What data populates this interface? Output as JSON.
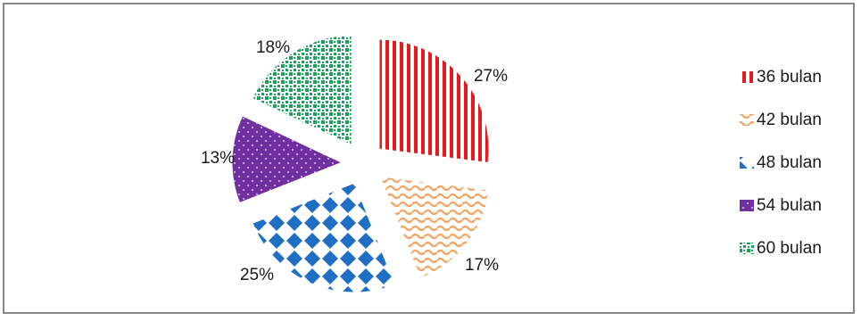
{
  "chart_data": {
    "type": "pie",
    "exploded": true,
    "legend_position": "right",
    "categories": [
      "36 bulan",
      "42 bulan",
      "48 bulan",
      "54 bulan",
      "60 bulan"
    ],
    "values": [
      27,
      17,
      25,
      13,
      18
    ],
    "labels": [
      "27%",
      "17%",
      "25%",
      "13%",
      "18%"
    ],
    "colors": [
      "#e41a1c",
      "#f4a460",
      "#1f6fc5",
      "#7030a0",
      "#1aa05a"
    ],
    "patterns": [
      "vertical-stripes",
      "waves",
      "diamonds",
      "dots",
      "checker"
    ]
  }
}
